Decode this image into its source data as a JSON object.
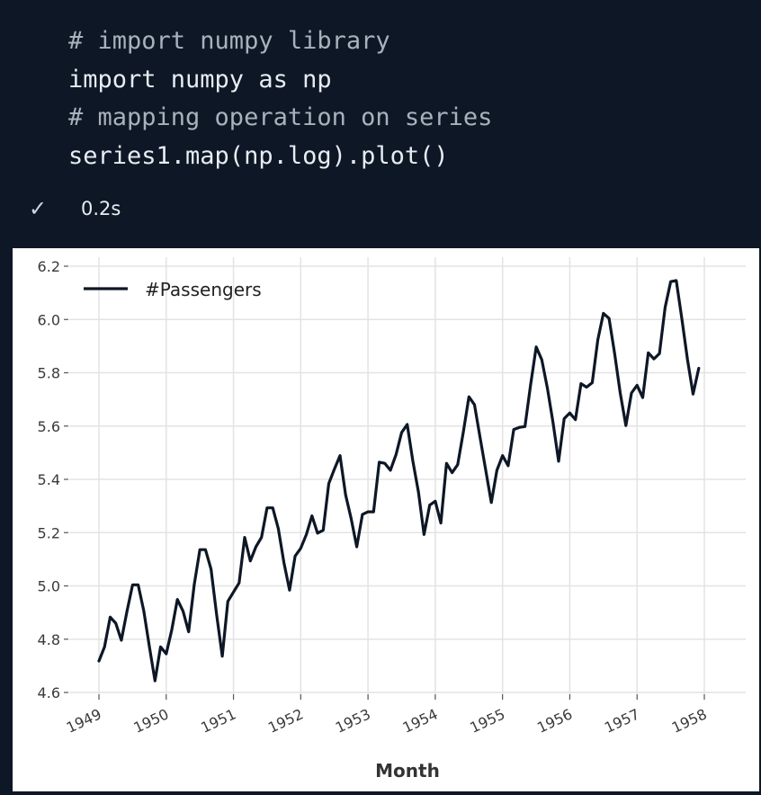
{
  "code": {
    "lines": [
      {
        "text": "# import numpy library",
        "kind": "comment"
      },
      {
        "text": "import numpy as np",
        "kind": "code"
      },
      {
        "text": "# mapping operation on series",
        "kind": "comment"
      },
      {
        "text": "series1.map(np.log).plot()",
        "kind": "code"
      }
    ]
  },
  "status": {
    "icon": "check-icon",
    "time": "0.2s"
  },
  "chart_data": {
    "type": "line",
    "title": "",
    "xlabel": "Month",
    "ylabel": "",
    "ylim": [
      4.6,
      6.2
    ],
    "y_ticks": [
      "4.6",
      "4.8",
      "5.0",
      "5.2",
      "5.4",
      "5.6",
      "5.8",
      "6.0",
      "6.2"
    ],
    "x_ticks": [
      "1949",
      "1950",
      "1951",
      "1952",
      "1953",
      "1954",
      "1955",
      "1956",
      "1957",
      "1958"
    ],
    "grid": true,
    "legend_position": "top-left",
    "series": [
      {
        "name": "#Passengers",
        "color": "#0d1726",
        "x_start": "1949-01",
        "frequency": "monthly",
        "values": [
          4.718,
          4.771,
          4.883,
          4.86,
          4.796,
          4.905,
          5.004,
          5.004,
          4.905,
          4.771,
          4.644,
          4.771,
          4.745,
          4.836,
          4.949,
          4.905,
          4.828,
          5.004,
          5.136,
          5.136,
          5.063,
          4.89,
          4.736,
          4.942,
          4.977,
          5.011,
          5.182,
          5.094,
          5.147,
          5.182,
          5.293,
          5.293,
          5.215,
          5.088,
          4.984,
          5.112,
          5.141,
          5.193,
          5.263,
          5.198,
          5.209,
          5.384,
          5.438,
          5.489,
          5.342,
          5.252,
          5.147,
          5.268,
          5.278,
          5.278,
          5.464,
          5.46,
          5.434,
          5.493,
          5.576,
          5.606,
          5.468,
          5.352,
          5.193,
          5.303,
          5.318,
          5.236,
          5.46,
          5.425,
          5.455,
          5.576,
          5.71,
          5.68,
          5.557,
          5.434,
          5.313,
          5.434,
          5.489,
          5.451,
          5.587,
          5.595,
          5.598,
          5.753,
          5.897,
          5.849,
          5.743,
          5.613,
          5.468,
          5.628,
          5.649,
          5.624,
          5.759,
          5.746,
          5.763,
          5.924,
          6.023,
          6.004,
          5.872,
          5.724,
          5.602,
          5.724,
          5.753,
          5.707,
          5.875,
          5.852,
          5.872,
          6.045,
          6.142,
          6.146,
          6.001,
          5.849,
          5.72,
          5.817
        ]
      }
    ]
  }
}
